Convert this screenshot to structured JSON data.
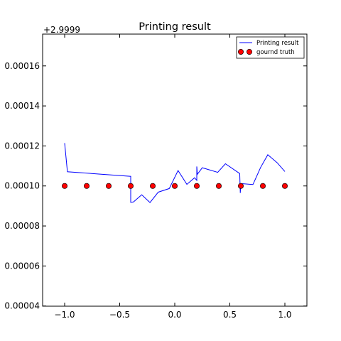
{
  "chart_data": {
    "type": "line",
    "title": "Printing result",
    "xlabel": "",
    "ylabel": "",
    "xlim": [
      -1.2,
      1.2
    ],
    "ylim": [
      3.99e-05,
      0.0001759
    ],
    "y_offset_label": "+2.9999",
    "x_ticks": [
      -1.0,
      -0.5,
      0.0,
      0.5,
      1.0
    ],
    "x_tick_labels": [
      "−1.0",
      "−0.5",
      "0.0",
      "0.5",
      "1.0"
    ],
    "y_ticks": [
      4e-05,
      6e-05,
      8e-05,
      0.0001,
      0.00012,
      0.00014,
      0.00016
    ],
    "y_tick_labels": [
      "0.00004",
      "0.00006",
      "0.00008",
      "0.00010",
      "0.00012",
      "0.00014",
      "0.00016"
    ],
    "grid": false,
    "legend_position": "top-right",
    "series": [
      {
        "name": "Printing result",
        "kind": "line",
        "color": "#0000ff",
        "points": [
          [
            -1.0,
            0.0001214
          ],
          [
            -0.975,
            0.0001071
          ],
          [
            -0.4,
            0.0001048
          ],
          [
            -0.4,
            9.18e-05
          ],
          [
            -0.375,
            9.2e-05
          ],
          [
            -0.3,
            9.56e-05
          ],
          [
            -0.225,
            9.17e-05
          ],
          [
            -0.15,
            9.69e-05
          ],
          [
            -0.05,
            9.87e-05
          ],
          [
            0.03,
            0.0001077
          ],
          [
            0.11,
            0.0001008
          ],
          [
            0.18,
            0.0001041
          ],
          [
            0.2,
            0.0001028
          ],
          [
            0.2,
            0.0001097
          ],
          [
            0.205,
            0.0001058
          ],
          [
            0.25,
            0.0001091
          ],
          [
            0.39,
            0.0001068
          ],
          [
            0.46,
            0.0001111
          ],
          [
            0.59,
            0.0001062
          ],
          [
            0.595,
            9.65e-05
          ],
          [
            0.6,
            0.0001012
          ],
          [
            0.71,
            0.0001007
          ],
          [
            0.78,
            0.0001093
          ],
          [
            0.845,
            0.0001156
          ],
          [
            0.93,
            0.0001116
          ],
          [
            1.0,
            0.0001072
          ]
        ]
      },
      {
        "name": "gournd truth",
        "kind": "scatter",
        "color": "#ff0000",
        "points": [
          [
            -1.0,
            0.0001
          ],
          [
            -0.8,
            0.0001
          ],
          [
            -0.6,
            0.0001
          ],
          [
            -0.4,
            0.0001
          ],
          [
            -0.2,
            0.0001
          ],
          [
            0.0,
            0.0001
          ],
          [
            0.2,
            0.0001
          ],
          [
            0.4,
            0.0001
          ],
          [
            0.6,
            0.0001
          ],
          [
            0.8,
            0.0001
          ],
          [
            1.0,
            0.0001
          ]
        ]
      }
    ]
  }
}
